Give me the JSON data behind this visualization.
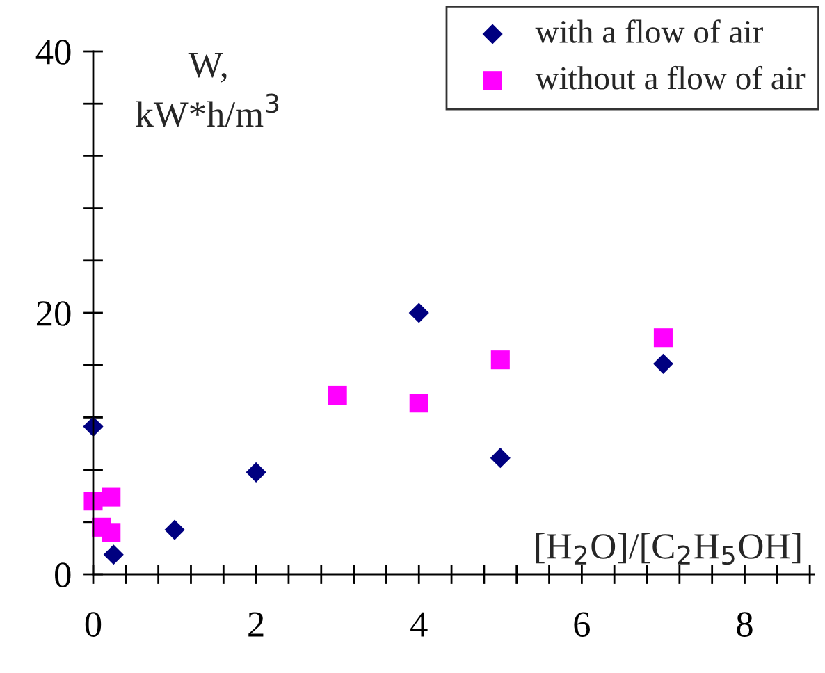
{
  "chart_data": {
    "type": "scatter",
    "xlabel": "[H$_{2}$O]/[C$_{2}$H$_{5}$OH]",
    "ylabel": "W,\nkW*h/m$^{3}$",
    "xlim": [
      0,
      8.85
    ],
    "ylim": [
      0,
      40
    ],
    "xticks": [
      0,
      {
        "value": 0.4,
        "label": null
      },
      {
        "value": 0.8,
        "label": null
      },
      {
        "value": 1.2,
        "label": null
      },
      {
        "value": 1.6,
        "label": null
      },
      2,
      {
        "value": 2.4,
        "label": null
      },
      {
        "value": 2.8,
        "label": null
      },
      {
        "value": 3.2,
        "label": null
      },
      {
        "value": 3.6,
        "label": null
      },
      4,
      {
        "value": 4.4,
        "label": null
      },
      {
        "value": 4.8,
        "label": null
      },
      {
        "value": 5.2,
        "label": null
      },
      {
        "value": 5.6,
        "label": null
      },
      6,
      {
        "value": 6.4,
        "label": null
      },
      {
        "value": 6.8,
        "label": null
      },
      {
        "value": 7.2,
        "label": null
      },
      {
        "value": 7.6,
        "label": null
      },
      8,
      {
        "value": 8.4,
        "label": null
      },
      {
        "value": 8.8,
        "label": null
      }
    ],
    "yticks": [
      0,
      {
        "value": 4,
        "label": null
      },
      {
        "value": 8,
        "label": null
      },
      {
        "value": 12,
        "label": null
      },
      {
        "value": 16,
        "label": null
      },
      20,
      {
        "value": 24,
        "label": null
      },
      {
        "value": 28,
        "label": null
      },
      {
        "value": 32,
        "label": null
      },
      {
        "value": 36,
        "label": null
      },
      40
    ],
    "grid": false,
    "legend": "top right",
    "series": [
      {
        "name": "with a flow of air",
        "color": "#000080",
        "marker": "diamond",
        "x": [
          0,
          0.2,
          0.25,
          1,
          2,
          4,
          5,
          7
        ],
        "values": [
          11.3,
          null,
          1.5,
          3.4,
          7.8,
          20,
          8.9,
          16.1
        ]
      },
      {
        "name": "without a flow of air",
        "color": "#ff00ff",
        "marker": "square",
        "x": [
          0,
          0.22,
          0.1,
          0.22,
          3,
          4,
          5,
          7
        ],
        "values": [
          5.6,
          5.9,
          3.6,
          3.2,
          13.7,
          13.1,
          16.4,
          18.1
        ]
      }
    ]
  }
}
